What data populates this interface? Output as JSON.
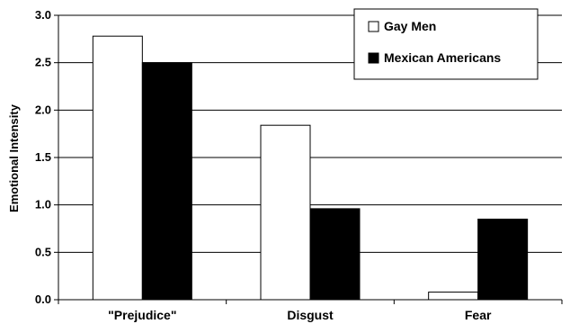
{
  "chart_data": {
    "type": "bar",
    "title": "",
    "xlabel": "",
    "ylabel": "Emotional Intensity",
    "ylim": [
      0,
      3.0
    ],
    "yticks": [
      "0.0",
      "0.5",
      "1.0",
      "1.5",
      "2.0",
      "2.5",
      "3.0"
    ],
    "categories": [
      "\"Prejudice\"",
      "Disgust",
      "Fear"
    ],
    "series": [
      {
        "name": "Gay Men",
        "values": [
          2.78,
          1.84,
          0.08
        ],
        "color": "#ffffff"
      },
      {
        "name": "Mexican Americans",
        "values": [
          2.5,
          0.96,
          0.85
        ],
        "color": "#000000"
      }
    ],
    "grid": true,
    "legend_position": "top-right"
  }
}
